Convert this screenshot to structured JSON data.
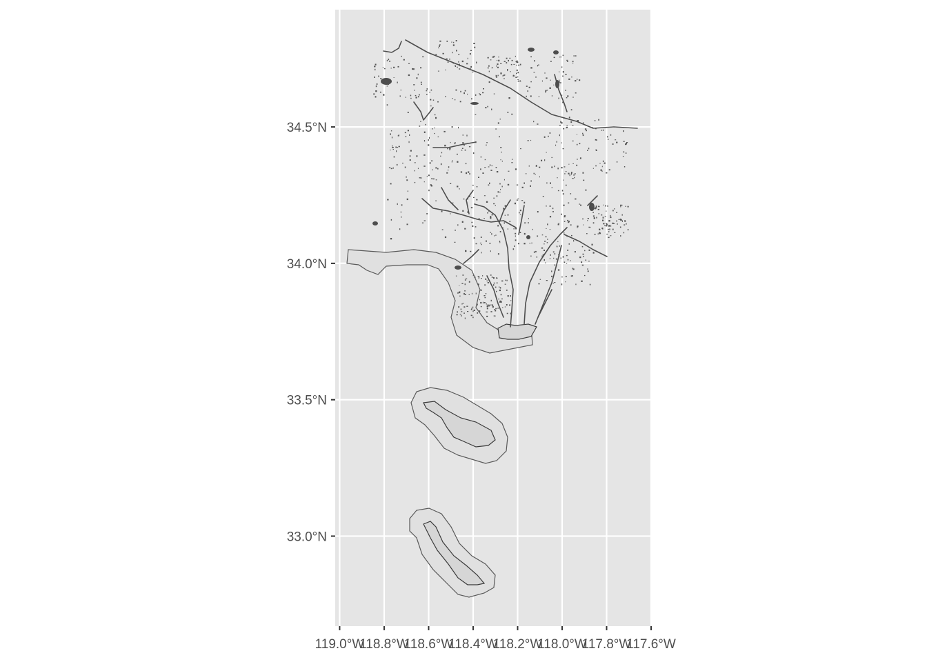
{
  "chart_data": {
    "type": "map",
    "title": "",
    "xlabel": "",
    "ylabel": "",
    "projection": "geographic lon/lat",
    "xlim": [
      -119.02,
      -117.6
    ],
    "ylim": [
      32.67,
      34.93
    ],
    "x_ticks": [
      {
        "value": -119.0,
        "label": "119.0°W"
      },
      {
        "value": -118.8,
        "label": "118.8°W"
      },
      {
        "value": -118.6,
        "label": "118.6°W"
      },
      {
        "value": -118.4,
        "label": "118.4°W"
      },
      {
        "value": -118.2,
        "label": "118.2°W"
      },
      {
        "value": -118.0,
        "label": "118.0°W"
      },
      {
        "value": -117.8,
        "label": "117.8°W"
      },
      {
        "value": -117.6,
        "label": "117.6°W"
      }
    ],
    "y_ticks": [
      {
        "value": 33.0,
        "label": "33.0°N"
      },
      {
        "value": 33.5,
        "label": "33.5°N"
      },
      {
        "value": 34.0,
        "label": "34.0°N"
      },
      {
        "value": 34.5,
        "label": "34.5°N"
      }
    ],
    "panel_background": "#e5e5e5",
    "grid": true,
    "grid_color": "#ffffff",
    "feature_color": "#4d4d4d",
    "buffer_fill": "#e0e0e0",
    "layers": [
      {
        "kind": "coastal buffer polygon",
        "region": "mainland coast"
      },
      {
        "kind": "coastal buffer polygon",
        "region": "Santa Catalina Island"
      },
      {
        "kind": "coastal buffer polygon",
        "region": "San Clemente Island"
      },
      {
        "kind": "water features (rivers, lakes, reservoirs)",
        "region": "Los Angeles County"
      }
    ]
  }
}
